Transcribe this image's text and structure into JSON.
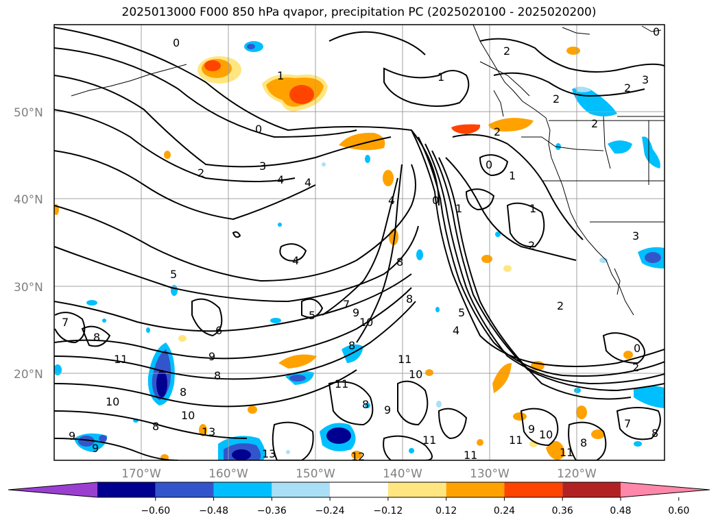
{
  "title": "2025013000 F000 850 hPa qvapor, precipitation PC (2025020100 - 2025020200)",
  "lat_labels": [
    "50°N",
    "40°N",
    "30°N",
    "20°N"
  ],
  "lon_labels": [
    "170°W",
    "160°W",
    "150°W",
    "140°W",
    "130°W",
    "120°W"
  ],
  "contour_labels": [
    "0",
    "1",
    "2",
    "3",
    "4",
    "5",
    "6",
    "7",
    "8",
    "9",
    "10",
    "11",
    "12",
    "13"
  ],
  "colorbar": {
    "ticks": [
      "−0.60",
      "−0.48",
      "−0.36",
      "−0.24",
      "−0.12",
      "0.12",
      "0.24",
      "0.36",
      "0.48",
      "0.60"
    ],
    "colors": [
      "#9b3fd1",
      "#000090",
      "#3355cc",
      "#00bfff",
      "#aadff8",
      "#ffffff",
      "#ffe680",
      "#ffa200",
      "#ff4400",
      "#b22222",
      "#ff88aa"
    ]
  },
  "colors": {
    "land_border": "#000000",
    "grid": "#a0a0a0",
    "orange": "#ffa200",
    "red_orange": "#ff4400",
    "light_yellow": "#ffe680",
    "cyan": "#00bfff",
    "light_blue": "#aadff8",
    "blue": "#3355cc",
    "navy": "#000090"
  }
}
